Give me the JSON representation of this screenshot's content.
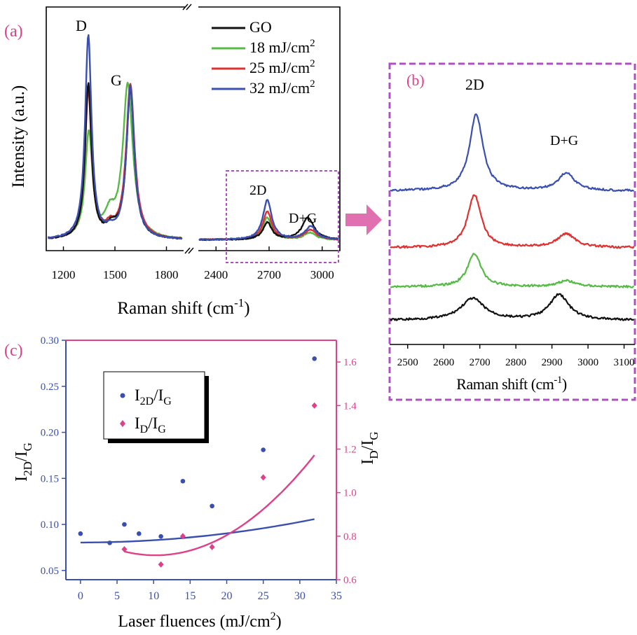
{
  "colors": {
    "black": "#111111",
    "green": "#55bb44",
    "red": "#e03030",
    "blue": "#3a4fb0",
    "magenta": "#e0408a",
    "box": "#b050c0",
    "arrow": "#e070b0"
  },
  "arrow_icon": "right-arrow-icon",
  "panel_a": {
    "label": "(a)",
    "ylabel": "Intensity (a.u.)",
    "xlabel_main": "Raman shift (cm",
    "xlabel_sup": "-1",
    "xlabel_end": ")",
    "peak_labels": {
      "D": "D",
      "G": "G",
      "twoD": "2D",
      "DG": "D+G"
    },
    "axis_break": "//",
    "ticks_left": [
      "1200",
      "1500",
      "1800"
    ],
    "ticks_right": [
      "2400",
      "2700",
      "3000"
    ],
    "legend": [
      {
        "pre": "GO",
        "sup": "",
        "post": "",
        "color": "#111111"
      },
      {
        "pre": "18 mJ/cm",
        "sup": "2",
        "post": "",
        "color": "#55bb44"
      },
      {
        "pre": "25 mJ/cm",
        "sup": "2",
        "post": "",
        "color": "#e03030"
      },
      {
        "pre": "32 mJ/cm",
        "sup": "2",
        "post": "",
        "color": "#3a4fb0"
      }
    ]
  },
  "panel_b": {
    "label": "(b)",
    "peak_labels": {
      "twoD": "2D",
      "DG": "D+G"
    },
    "ticks": [
      "2500",
      "2600",
      "2700",
      "2800",
      "2900",
      "3000",
      "3100"
    ],
    "xlabel_main": "Raman shift (cm",
    "xlabel_sup": "-1",
    "xlabel_end": ")"
  },
  "panel_c": {
    "label": "(c)",
    "xlabel_main": "Laser fluences (mJ/cm",
    "xlabel_sup": "2",
    "xlabel_end": ")",
    "ylabel_left": {
      "a": "I",
      "a_sub": "2D",
      "b": "/I",
      "b_sub": "G"
    },
    "ylabel_right": {
      "a": "I",
      "a_sub": "D",
      "b": "/I",
      "b_sub": "G"
    },
    "legend": [
      {
        "a": "I",
        "a_sub": "2D",
        "b": "/I",
        "b_sub": "G",
        "color": "#3a4fb0"
      },
      {
        "a": "I",
        "a_sub": "D",
        "b": "/I",
        "b_sub": "G",
        "color": "#e0408a"
      }
    ],
    "xticks": [
      "0",
      "5",
      "10",
      "15",
      "20",
      "25",
      "30",
      "35"
    ],
    "yticks_left": [
      "0.05",
      "0.10",
      "0.15",
      "0.20",
      "0.25",
      "0.30"
    ],
    "yticks_right": [
      "0.6",
      "0.8",
      "1.0",
      "1.2",
      "1.4",
      "1.6"
    ]
  },
  "chart_data": [
    {
      "type": "line",
      "panel": "(a)",
      "xlabel": "Raman shift (cm-1)",
      "ylabel": "Intensity (a.u.)",
      "broken_x_axis": [
        [
          1100,
          1900
        ],
        [
          2300,
          3100
        ]
      ],
      "series": [
        {
          "name": "GO",
          "color": "#111111",
          "peaks": [
            {
              "pos": 1345,
              "height": 0.76,
              "width": 45
            },
            {
              "pos": 1590,
              "height": 0.74,
              "width": 55
            },
            {
              "pos": 1480,
              "height": 0.05,
              "width": 70
            },
            {
              "pos": 2690,
              "height": 0.085,
              "width": 60
            },
            {
              "pos": 2920,
              "height": 0.11,
              "width": 80
            }
          ]
        },
        {
          "name": "18 mJ/cm2",
          "color": "#55bb44",
          "peaks": [
            {
              "pos": 1348,
              "height": 0.52,
              "width": 50
            },
            {
              "pos": 1575,
              "height": 0.76,
              "width": 70
            },
            {
              "pos": 1470,
              "height": 0.1,
              "width": 70
            },
            {
              "pos": 2690,
              "height": 0.11,
              "width": 60
            },
            {
              "pos": 2930,
              "height": 0.035,
              "width": 80
            }
          ]
        },
        {
          "name": "25 mJ/cm2",
          "color": "#e03030",
          "peaks": [
            {
              "pos": 1345,
              "height": 0.73,
              "width": 45
            },
            {
              "pos": 1590,
              "height": 0.76,
              "width": 60
            },
            {
              "pos": 1470,
              "height": 0.05,
              "width": 70
            },
            {
              "pos": 2690,
              "height": 0.14,
              "width": 60
            },
            {
              "pos": 2935,
              "height": 0.05,
              "width": 80
            }
          ]
        },
        {
          "name": "32 mJ/cm2",
          "color": "#3a4fb0",
          "peaks": [
            {
              "pos": 1345,
              "height": 1.0,
              "width": 45
            },
            {
              "pos": 1590,
              "height": 0.75,
              "width": 55
            },
            {
              "pos": 1470,
              "height": 0.03,
              "width": 70
            },
            {
              "pos": 2690,
              "height": 0.195,
              "width": 60
            },
            {
              "pos": 2935,
              "height": 0.065,
              "width": 80
            }
          ]
        }
      ]
    },
    {
      "type": "line",
      "panel": "(b)",
      "xlabel": "Raman shift (cm-1)",
      "xlim": [
        2450,
        3130
      ],
      "series": [
        {
          "name": "GO",
          "color": "#111111",
          "offset": 0.0,
          "peaks": [
            {
              "pos": 2680,
              "height": 0.55,
              "width": 80
            },
            {
              "pos": 2920,
              "height": 0.65,
              "width": 65
            }
          ]
        },
        {
          "name": "18 mJ/cm2",
          "color": "#55bb44",
          "offset": 0.85,
          "peaks": [
            {
              "pos": 2685,
              "height": 0.85,
              "width": 45
            },
            {
              "pos": 2940,
              "height": 0.15,
              "width": 60
            }
          ]
        },
        {
          "name": "25 mJ/cm2",
          "color": "#e03030",
          "offset": 1.85,
          "peaks": [
            {
              "pos": 2685,
              "height": 1.35,
              "width": 45
            },
            {
              "pos": 2940,
              "height": 0.35,
              "width": 60
            }
          ]
        },
        {
          "name": "32 mJ/cm2",
          "color": "#3a4fb0",
          "offset": 3.3,
          "peaks": [
            {
              "pos": 2690,
              "height": 1.95,
              "width": 45
            },
            {
              "pos": 2940,
              "height": 0.45,
              "width": 55
            }
          ]
        }
      ]
    },
    {
      "type": "scatter",
      "panel": "(c)",
      "xlabel": "Laser fluences (mJ/cm2)",
      "xlim": [
        -2,
        35
      ],
      "ylim_left": [
        0.04,
        0.3
      ],
      "ylim_right": [
        0.6,
        1.7
      ],
      "series": [
        {
          "name": "I2D/IG",
          "axis": "left",
          "color": "#3a4fb0",
          "x": [
            0,
            4,
            6,
            8,
            11,
            14,
            18,
            25,
            32
          ],
          "y": [
            0.09,
            0.08,
            0.1,
            0.09,
            0.087,
            0.147,
            0.12,
            0.181,
            0.28
          ],
          "fit": [
            2.48e-05,
            -1e-06,
            0.0804
          ]
        },
        {
          "name": "ID/IG",
          "axis": "right",
          "color": "#e0408a",
          "x": [
            6,
            11,
            14,
            18,
            25,
            32
          ],
          "y": [
            0.74,
            0.67,
            0.8,
            0.75,
            1.07,
            1.4
          ],
          "fit": [
            0.000972,
            -0.01992,
            0.8142
          ]
        }
      ]
    }
  ]
}
